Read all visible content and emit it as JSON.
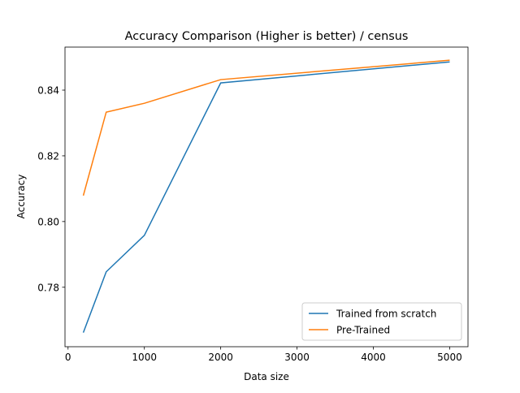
{
  "chart_data": {
    "type": "line",
    "title": "Accuracy Comparison (Higher is better) / census",
    "xlabel": "Data size",
    "ylabel": "Accuracy",
    "x": [
      200,
      500,
      1000,
      2000,
      5000
    ],
    "series": [
      {
        "name": "Trained from scratch",
        "color": "#1f77b4",
        "values": [
          0.7662,
          0.7847,
          0.7958,
          0.8422,
          0.8486
        ]
      },
      {
        "name": "Pre-Trained",
        "color": "#ff7f0e",
        "values": [
          0.8079,
          0.8333,
          0.836,
          0.8432,
          0.8491
        ]
      }
    ],
    "xlim": [
      -40,
      5240
    ],
    "xticks": [
      0,
      1000,
      2000,
      3000,
      4000,
      5000
    ],
    "ylim": [
      0.7619,
      0.8531
    ],
    "yticks": [
      0.78,
      {
        "value": 0.8,
        "label": "0.80"
      },
      0.82,
      0.84
    ],
    "legend": "lower right"
  }
}
